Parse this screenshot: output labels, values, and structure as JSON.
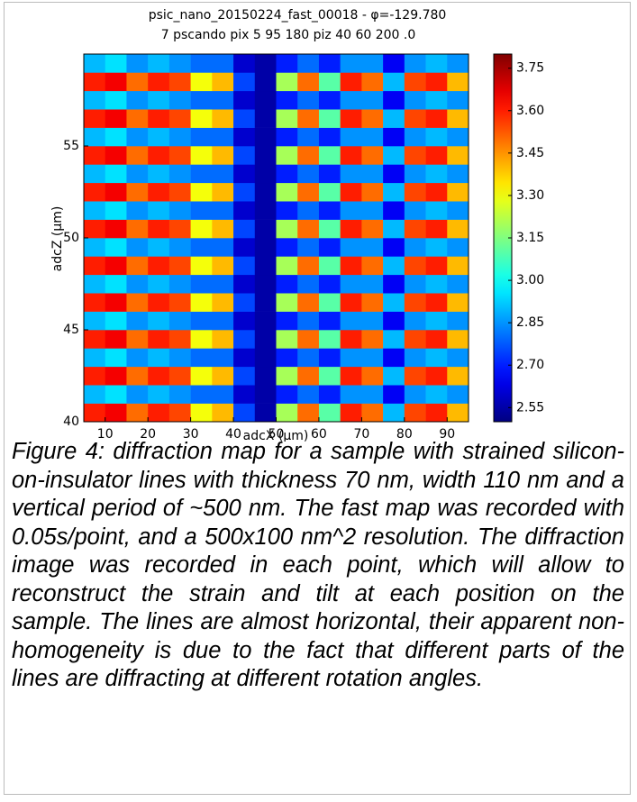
{
  "chart_data": {
    "type": "heatmap",
    "title": "psic_nano_20150224_fast_00018 - φ=-129.780",
    "subtitle": "7 pscando pix 5 95 180 piz 40 60 200 .0",
    "xlabel": "adcX (μm)",
    "ylabel": "adcZ (μm)",
    "x": [
      7.5,
      12.5,
      17.5,
      22.5,
      27.5,
      32.5,
      37.5,
      42.5,
      47.5,
      52.5,
      57.5,
      62.5,
      67.5,
      72.5,
      77.5,
      82.5,
      87.5,
      92.5
    ],
    "y": [
      40.5,
      41.5,
      42.5,
      43.5,
      44.5,
      45.5,
      46.5,
      47.5,
      48.5,
      49.5,
      50.5,
      51.5,
      52.5,
      53.5,
      54.5,
      55.5,
      56.5,
      57.5,
      58.5,
      59.5
    ],
    "z": [
      [
        3.6,
        3.65,
        3.5,
        3.6,
        3.55,
        3.3,
        3.4,
        2.75,
        2.55,
        3.2,
        3.5,
        3.1,
        3.6,
        3.5,
        2.9,
        3.55,
        3.6,
        3.4
      ],
      [
        2.9,
        2.95,
        2.85,
        2.9,
        2.85,
        2.8,
        2.8,
        2.6,
        2.55,
        2.7,
        2.8,
        2.7,
        2.85,
        2.85,
        2.65,
        2.85,
        2.9,
        2.85
      ],
      [
        3.6,
        3.65,
        3.5,
        3.6,
        3.55,
        3.3,
        3.4,
        2.75,
        2.55,
        3.2,
        3.5,
        3.1,
        3.6,
        3.5,
        2.9,
        3.55,
        3.6,
        3.4
      ],
      [
        2.9,
        2.95,
        2.85,
        2.9,
        2.85,
        2.8,
        2.8,
        2.6,
        2.55,
        2.7,
        2.8,
        2.7,
        2.85,
        2.85,
        2.65,
        2.85,
        2.9,
        2.85
      ],
      [
        3.6,
        3.65,
        3.5,
        3.6,
        3.55,
        3.3,
        3.4,
        2.75,
        2.55,
        3.2,
        3.5,
        3.1,
        3.6,
        3.5,
        2.9,
        3.55,
        3.6,
        3.4
      ],
      [
        2.9,
        2.95,
        2.85,
        2.9,
        2.85,
        2.8,
        2.8,
        2.6,
        2.55,
        2.7,
        2.8,
        2.7,
        2.85,
        2.85,
        2.65,
        2.85,
        2.9,
        2.85
      ],
      [
        3.6,
        3.65,
        3.5,
        3.6,
        3.55,
        3.3,
        3.4,
        2.75,
        2.55,
        3.2,
        3.5,
        3.1,
        3.6,
        3.5,
        2.9,
        3.55,
        3.6,
        3.4
      ],
      [
        2.9,
        2.95,
        2.85,
        2.9,
        2.85,
        2.8,
        2.8,
        2.6,
        2.55,
        2.7,
        2.8,
        2.7,
        2.85,
        2.85,
        2.65,
        2.85,
        2.9,
        2.85
      ],
      [
        3.6,
        3.65,
        3.5,
        3.6,
        3.55,
        3.3,
        3.4,
        2.75,
        2.55,
        3.2,
        3.5,
        3.1,
        3.6,
        3.5,
        2.9,
        3.55,
        3.6,
        3.4
      ],
      [
        2.9,
        2.95,
        2.85,
        2.9,
        2.85,
        2.8,
        2.8,
        2.6,
        2.55,
        2.7,
        2.8,
        2.7,
        2.85,
        2.85,
        2.65,
        2.85,
        2.9,
        2.85
      ],
      [
        3.6,
        3.65,
        3.5,
        3.6,
        3.55,
        3.3,
        3.4,
        2.75,
        2.55,
        3.2,
        3.5,
        3.1,
        3.6,
        3.5,
        2.9,
        3.55,
        3.6,
        3.4
      ],
      [
        2.9,
        2.95,
        2.85,
        2.9,
        2.85,
        2.8,
        2.8,
        2.6,
        2.55,
        2.7,
        2.8,
        2.7,
        2.85,
        2.85,
        2.65,
        2.85,
        2.9,
        2.85
      ],
      [
        3.6,
        3.65,
        3.5,
        3.6,
        3.55,
        3.3,
        3.4,
        2.75,
        2.55,
        3.2,
        3.5,
        3.1,
        3.6,
        3.5,
        2.9,
        3.55,
        3.6,
        3.4
      ],
      [
        2.9,
        2.95,
        2.85,
        2.9,
        2.85,
        2.8,
        2.8,
        2.6,
        2.55,
        2.7,
        2.8,
        2.7,
        2.85,
        2.85,
        2.65,
        2.85,
        2.9,
        2.85
      ],
      [
        3.6,
        3.65,
        3.5,
        3.6,
        3.55,
        3.3,
        3.4,
        2.75,
        2.55,
        3.2,
        3.5,
        3.1,
        3.6,
        3.5,
        2.9,
        3.55,
        3.6,
        3.4
      ],
      [
        2.9,
        2.95,
        2.85,
        2.9,
        2.85,
        2.8,
        2.8,
        2.6,
        2.55,
        2.7,
        2.8,
        2.7,
        2.85,
        2.85,
        2.65,
        2.85,
        2.9,
        2.85
      ],
      [
        3.6,
        3.65,
        3.5,
        3.6,
        3.55,
        3.3,
        3.4,
        2.75,
        2.55,
        3.2,
        3.5,
        3.1,
        3.6,
        3.5,
        2.9,
        3.55,
        3.6,
        3.4
      ],
      [
        2.9,
        2.95,
        2.85,
        2.9,
        2.85,
        2.8,
        2.8,
        2.6,
        2.55,
        2.7,
        2.8,
        2.7,
        2.85,
        2.85,
        2.65,
        2.85,
        2.9,
        2.85
      ],
      [
        3.6,
        3.65,
        3.5,
        3.6,
        3.55,
        3.3,
        3.4,
        2.75,
        2.55,
        3.2,
        3.5,
        3.1,
        3.6,
        3.5,
        2.9,
        3.55,
        3.6,
        3.4
      ],
      [
        2.9,
        2.95,
        2.85,
        2.9,
        2.85,
        2.8,
        2.8,
        2.6,
        2.55,
        2.7,
        2.8,
        2.7,
        2.85,
        2.85,
        2.65,
        2.85,
        2.9,
        2.85
      ]
    ],
    "xlim": [
      5,
      95
    ],
    "ylim": [
      40,
      60
    ],
    "xticks": [
      10,
      20,
      30,
      40,
      50,
      60,
      70,
      80,
      90
    ],
    "yticks": [
      40,
      45,
      50,
      55
    ],
    "clim": [
      2.5,
      3.8
    ],
    "cticks": [
      2.55,
      {
        "value": 2.7,
        "label": "2.70"
      },
      2.85,
      {
        "value": 3,
        "label": "3.00"
      },
      3.15,
      {
        "value": 3.3,
        "label": "3.30"
      },
      3.45,
      {
        "value": 3.6,
        "label": "3.60"
      },
      3.75
    ],
    "colormap": "jet"
  },
  "caption": "Figure 4: diffraction map for a sample with strained silicon-on-insulator lines with thickness 70 nm, width 110 nm and a vertical period of ~500 nm. The fast map was recorded with 0.05s/point, and a 500x100 nm^2 resolution. The diffraction image was recorded in each point, which will allow to reconstruct the strain and tilt at each position on the sample. The lines are almost horizontal, their apparent non-homogeneity is due to the fact that different parts of the lines are diffracting at different rotation angles."
}
